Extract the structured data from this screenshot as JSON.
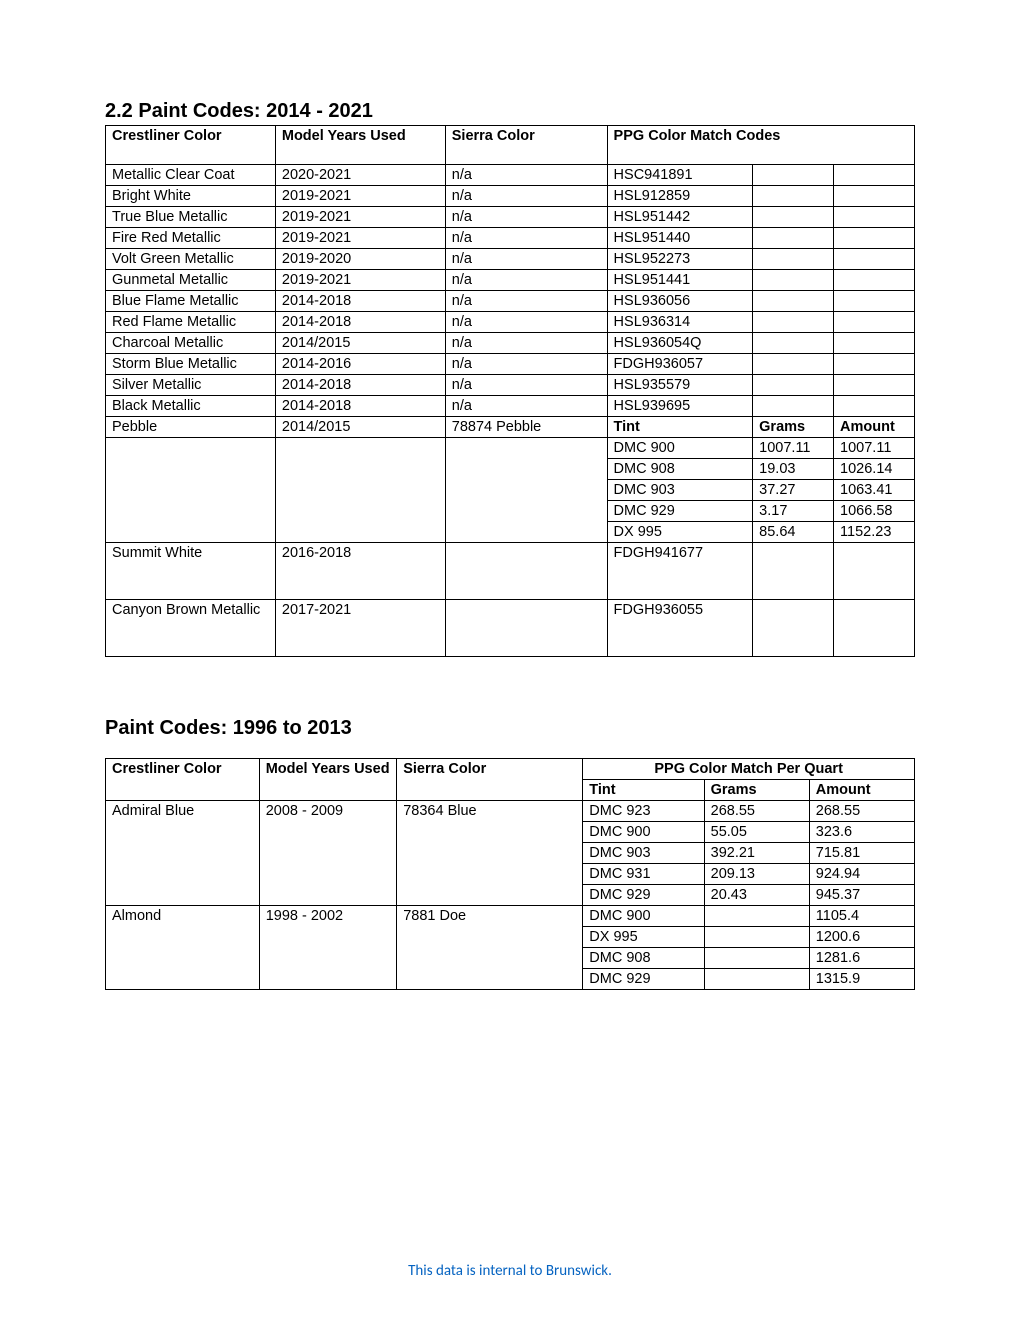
{
  "section1": {
    "heading": "2.2    Paint Codes:  2014 - 2021",
    "columns": [
      "Crestliner Color",
      "Model Years Used",
      "Sierra Color",
      "PPG Color Match Codes"
    ],
    "colwidths_pct": [
      21,
      21,
      20,
      38
    ],
    "sub_headers": [
      "Tint",
      "Grams",
      "Amount"
    ],
    "simple_rows": [
      {
        "color": "Metallic Clear Coat",
        "years": "2020-2021",
        "sierra": "n/a",
        "ppg": "HSC941891"
      },
      {
        "color": "Bright White",
        "years": "2019-2021",
        "sierra": "n/a",
        "ppg": "HSL912859"
      },
      {
        "color": "True Blue Metallic",
        "years": "2019-2021",
        "sierra": "n/a",
        "ppg": "HSL951442"
      },
      {
        "color": "Fire Red Metallic",
        "years": "2019-2021",
        "sierra": "n/a",
        "ppg": "HSL951440"
      },
      {
        "color": "Volt Green Metallic",
        "years": "2019-2020",
        "sierra": "n/a",
        "ppg": "HSL952273"
      },
      {
        "color": "Gunmetal Metallic",
        "years": "2019-2021",
        "sierra": "n/a",
        "ppg": "HSL951441"
      },
      {
        "color": "Blue Flame Metallic",
        "years": "2014-2018",
        "sierra": "n/a",
        "ppg": "HSL936056"
      },
      {
        "color": "Red Flame Metallic",
        "years": "2014-2018",
        "sierra": "n/a",
        "ppg": "HSL936314"
      },
      {
        "color": "Charcoal Metallic",
        "years": "2014/2015",
        "sierra": "n/a",
        "ppg": "HSL936054Q"
      },
      {
        "color": "Storm Blue Metallic",
        "years": "2014-2016",
        "sierra": "n/a",
        "ppg": "FDGH936057"
      },
      {
        "color": "Silver Metallic",
        "years": "2014-2018",
        "sierra": "n/a",
        "ppg": "HSL935579"
      },
      {
        "color": "Black Metallic",
        "years": "2014-2018",
        "sierra": "n/a",
        "ppg": "HSL939695"
      }
    ],
    "pebble_row": {
      "color": "Pebble",
      "years": "2014/2015",
      "sierra": "78874 Pebble"
    },
    "pebble_mix": [
      {
        "tint": "DMC 900",
        "grams": "1007.11",
        "amount": "1007.11"
      },
      {
        "tint": "DMC 908",
        "grams": "19.03",
        "amount": "1026.14"
      },
      {
        "tint": "DMC 903",
        "grams": "37.27",
        "amount": "1063.41"
      },
      {
        "tint": "DMC 929",
        "grams": "3.17",
        "amount": "1066.58"
      },
      {
        "tint": "DX 995",
        "grams": "85.64",
        "amount": "1152.23"
      }
    ],
    "trailing_rows": [
      {
        "color": "Summit White",
        "years": "2016-2018",
        "sierra": "",
        "ppg": "FDGH941677"
      },
      {
        "color": "Canyon Brown Metallic",
        "years": "2017-2021",
        "sierra": "",
        "ppg": "FDGH936055"
      }
    ]
  },
  "section2": {
    "heading": "Paint Codes: 1996 to 2013",
    "columns": [
      "Crestliner Color",
      "Model Years Used",
      "Sierra Color",
      "PPG Color Match Per Quart"
    ],
    "sub_headers": [
      "Tint",
      "Grams",
      "Amount"
    ],
    "colwidths_pct": [
      19,
      17,
      23,
      41
    ],
    "groups": [
      {
        "color": "Admiral Blue",
        "years": "2008 - 2009",
        "sierra": "78364 Blue",
        "mix": [
          {
            "tint": "DMC 923",
            "grams": "268.55",
            "amount": "268.55"
          },
          {
            "tint": "DMC 900",
            "grams": "55.05",
            "amount": "323.6"
          },
          {
            "tint": "DMC 903",
            "grams": "392.21",
            "amount": "715.81"
          },
          {
            "tint": "DMC 931",
            "grams": "209.13",
            "amount": "924.94"
          },
          {
            "tint": "DMC 929",
            "grams": "20.43",
            "amount": "945.37"
          }
        ]
      },
      {
        "color": "Almond",
        "years": "1998 - 2002",
        "sierra": "7881 Doe",
        "mix": [
          {
            "tint": "DMC 900",
            "grams": "",
            "amount": "1105.4"
          },
          {
            "tint": "DX 995",
            "grams": "",
            "amount": "1200.6"
          },
          {
            "tint": "DMC 908",
            "grams": "",
            "amount": "1281.6"
          },
          {
            "tint": "DMC 929",
            "grams": "",
            "amount": "1315.9"
          }
        ]
      }
    ]
  },
  "footer": "This data is internal to Brunswick.",
  "style": {
    "text_color": "#000000",
    "footer_color": "#0563c1",
    "border_color": "#000000",
    "background": "#ffffff",
    "title_fontsize_pt": 15,
    "body_fontsize_pt": 11
  }
}
